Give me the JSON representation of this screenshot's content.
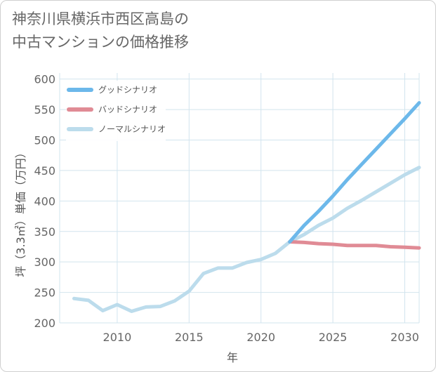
{
  "title": {
    "line1": "神奈川県横浜市西区高島の",
    "line2": "中古マンションの価格推移"
  },
  "colors": {
    "good": "#6cb8ea",
    "bad": "#e08b95",
    "normal": "#bcdcec",
    "grid": "#d2e4ee",
    "axis_text": "#666666"
  },
  "chart_data": {
    "type": "line",
    "xlabel": "年",
    "ylabel": "坪（3.3㎡）単価（万円）",
    "xlim": [
      2006,
      2031
    ],
    "ylim": [
      200,
      610
    ],
    "xticks": [
      2010,
      2015,
      2020,
      2025,
      2030
    ],
    "yticks": [
      200,
      250,
      300,
      350,
      400,
      450,
      500,
      550,
      600
    ],
    "grid": true,
    "legend_position": "top-left",
    "series": [
      {
        "key": "good",
        "name": "グッドシナリオ",
        "x": [
          2022,
          2023,
          2024,
          2025,
          2026,
          2027,
          2028,
          2029,
          2030,
          2031
        ],
        "values": [
          333,
          360,
          383,
          408,
          435,
          460,
          485,
          510,
          535,
          561
        ]
      },
      {
        "key": "bad",
        "name": "バッドシナリオ",
        "x": [
          2022,
          2023,
          2024,
          2025,
          2026,
          2027,
          2028,
          2029,
          2030,
          2031
        ],
        "values": [
          333,
          332,
          330,
          329,
          327,
          327,
          327,
          325,
          324,
          323
        ]
      },
      {
        "key": "normal",
        "name": "ノーマルシナリオ",
        "x": [
          2007,
          2008,
          2009,
          2010,
          2011,
          2012,
          2013,
          2014,
          2015,
          2016,
          2017,
          2018,
          2019,
          2020,
          2021,
          2022,
          2023,
          2024,
          2025,
          2026,
          2027,
          2028,
          2029,
          2030,
          2031
        ],
        "values": [
          240,
          237,
          220,
          230,
          219,
          226,
          227,
          236,
          252,
          281,
          290,
          290,
          299,
          304,
          314,
          333,
          345,
          360,
          372,
          388,
          401,
          415,
          429,
          443,
          455
        ]
      }
    ]
  }
}
